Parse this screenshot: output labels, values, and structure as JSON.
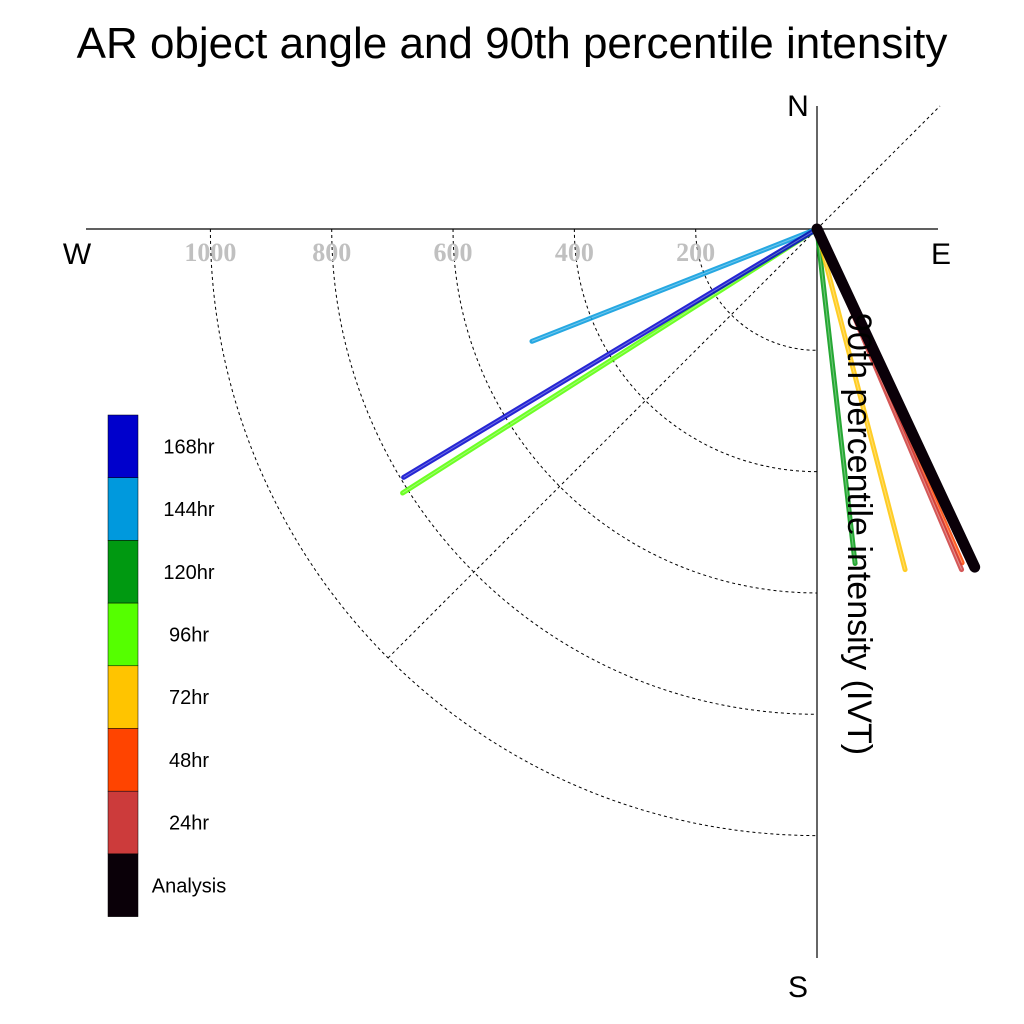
{
  "chart_data": {
    "type": "polar-vector",
    "title": "AR object angle and 90th percentile intensity",
    "radial_label": "90th percentile intensity (IVT)",
    "radial_ticks": [
      200,
      400,
      600,
      800,
      1000
    ],
    "radial_tick_labels": [
      "200",
      "400",
      "600",
      "800",
      "1000"
    ],
    "rmax": 1000,
    "compass": {
      "north": "N",
      "south": "S",
      "east": "E",
      "west": "W"
    },
    "series": [
      {
        "name": "168hr",
        "color": "#0000CC",
        "intensity": 795,
        "angle_deg": 239,
        "line_weight": "medium"
      },
      {
        "name": "144hr",
        "color": "#0099DD",
        "intensity": 505,
        "angle_deg": 248.5,
        "line_weight": "medium"
      },
      {
        "name": "120hr",
        "color": "#009911",
        "intensity": 555,
        "angle_deg": 173.5,
        "line_weight": "medium"
      },
      {
        "name": "96hr",
        "color": "#55FF00",
        "intensity": 810,
        "angle_deg": 237.5,
        "line_weight": "medium"
      },
      {
        "name": "72hr",
        "color": "#FFC400",
        "intensity": 580,
        "angle_deg": 165.5,
        "line_weight": "medium"
      },
      {
        "name": "48hr",
        "color": "#FF4400",
        "intensity": 600,
        "angle_deg": 156.5,
        "line_weight": "medium"
      },
      {
        "name": "24hr",
        "color": "#CC3B3B",
        "intensity": 610,
        "angle_deg": 157,
        "line_weight": "medium"
      },
      {
        "name": "Analysis",
        "color": "#0A0008",
        "intensity": 615,
        "angle_deg": 155,
        "line_weight": "heavy"
      }
    ],
    "legend_position": "left"
  }
}
